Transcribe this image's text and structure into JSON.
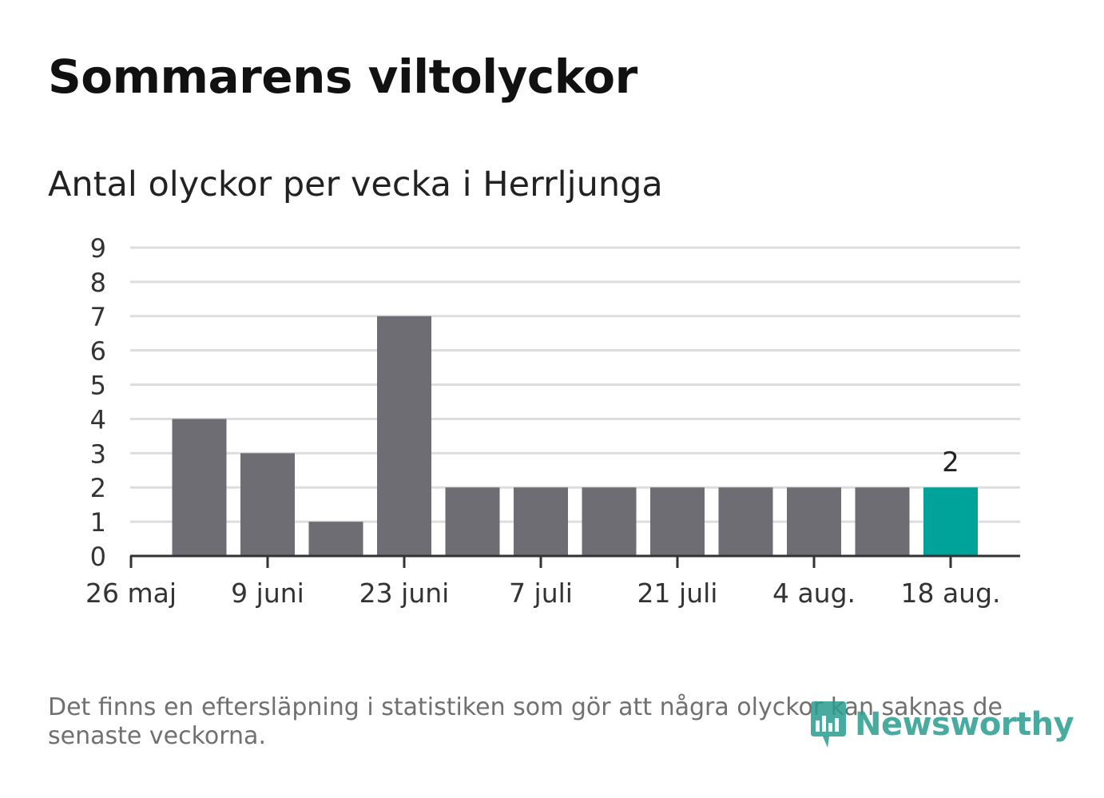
{
  "title": "Sommarens viltolyckor",
  "subtitle": "Antal olyckor per vecka i Herrljunga",
  "footnote": "Det finns en eftersläpning i statistiken som gör att några olyckor kan saknas de senaste veckorna.",
  "brand": {
    "name": "Newsworthy",
    "icon": "bar-chart-speech-bubble-icon"
  },
  "colors": {
    "bar": "#6e6d73",
    "highlight": "#00a39a",
    "grid": "#dddddd",
    "axis": "#333333",
    "brand": "#2a9d8f"
  },
  "chart_data": {
    "type": "bar",
    "ylim": [
      0,
      9
    ],
    "yticks": [
      "0",
      "1",
      "2",
      "3",
      "4",
      "5",
      "6",
      "7",
      "8",
      "9"
    ],
    "xticks": [
      "26 maj",
      "9 juni",
      "23 juni",
      "7 juli",
      "21 juli",
      "4 aug.",
      "18 aug."
    ],
    "values": [
      4,
      3,
      1,
      7,
      2,
      2,
      2,
      2,
      2,
      2,
      2,
      2
    ],
    "highlight_index": 11,
    "highlight_label": "2",
    "grid": true
  }
}
